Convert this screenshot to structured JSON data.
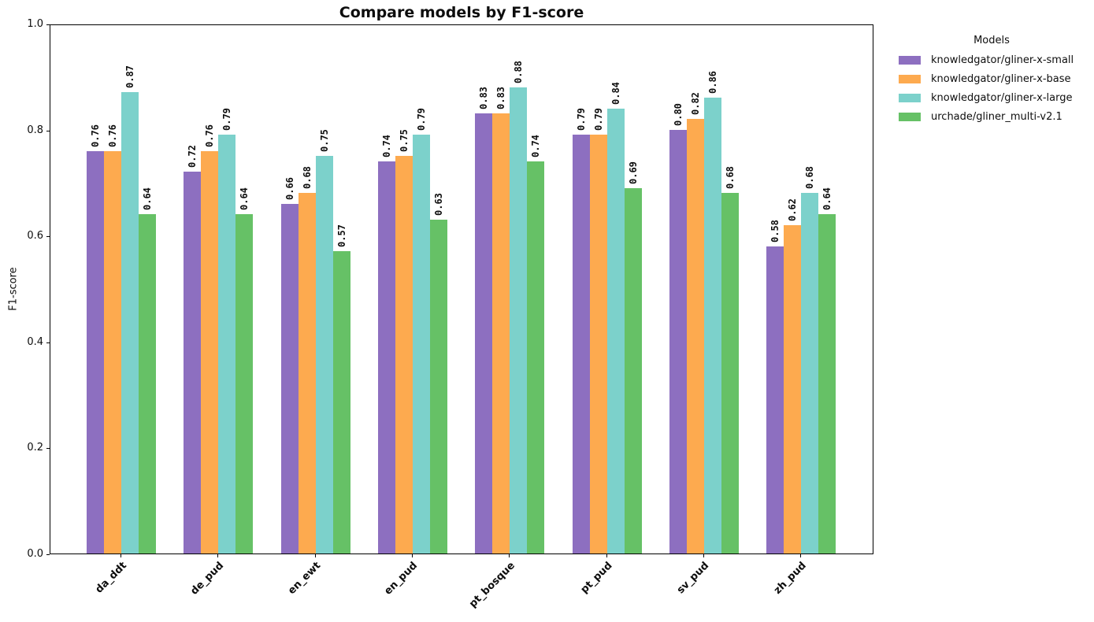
{
  "chart_data": {
    "type": "bar",
    "title": "Compare models by F1-score",
    "xlabel": "",
    "ylabel": "F1-score",
    "legend_title": "Models",
    "legend_position": "outside-upper-right",
    "grid": false,
    "background_color": "#ffffff",
    "text_color": "#0d0d0d",
    "ylim": [
      0.0,
      1.0
    ],
    "yticks": [
      0.0,
      0.2,
      0.4,
      0.6,
      0.8,
      1.0
    ],
    "xtick_rotation": 45,
    "value_labels_shown": true,
    "value_label_rotation": 90,
    "value_label_format": "0.00",
    "categories": [
      "da_ddt",
      "de_pud",
      "en_ewt",
      "en_pud",
      "pt_bosque",
      "pt_pud",
      "sv_pud",
      "zh_pud"
    ],
    "series": [
      {
        "name": "knowledgator/gliner-x-small",
        "color": "#8d6fc0",
        "values": [
          0.76,
          0.72,
          0.66,
          0.74,
          0.83,
          0.79,
          0.8,
          0.58
        ]
      },
      {
        "name": "knowledgator/gliner-x-base",
        "color": "#fdaa4f",
        "values": [
          0.76,
          0.76,
          0.68,
          0.75,
          0.83,
          0.79,
          0.82,
          0.62
        ]
      },
      {
        "name": "knowledgator/gliner-x-large",
        "color": "#7cd1cb",
        "values": [
          0.87,
          0.79,
          0.75,
          0.79,
          0.88,
          0.84,
          0.86,
          0.68
        ]
      },
      {
        "name": "urchade/gliner_multi-v2.1",
        "color": "#66c166",
        "values": [
          0.64,
          0.64,
          0.57,
          0.63,
          0.74,
          0.69,
          0.68,
          0.64
        ]
      }
    ]
  }
}
